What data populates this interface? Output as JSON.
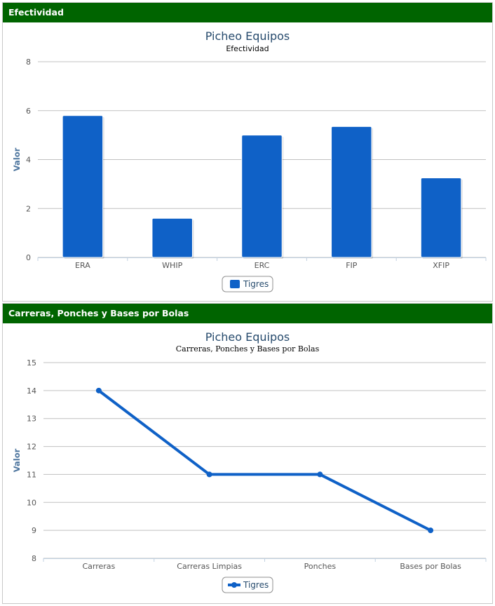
{
  "panels": [
    {
      "header": "Efectividad",
      "chart_data": {
        "type": "bar",
        "title": "Picheo Equipos",
        "subtitle": "Efectividad",
        "ylabel": "Valor",
        "ylim": [
          0,
          8
        ],
        "yticks": [
          0,
          2,
          4,
          6,
          8
        ],
        "categories": [
          "ERA",
          "WHIP",
          "ERC",
          "FIP",
          "XFIP"
        ],
        "series": [
          {
            "name": "Tigres",
            "values": [
              5.8,
              1.6,
              5.0,
              5.35,
              3.25
            ],
            "color": "#0f61c7"
          }
        ],
        "grid": true,
        "legend_position": "bottom-center"
      }
    },
    {
      "header": "Carreras, Ponches y Bases por Bolas",
      "chart_data": {
        "type": "line",
        "title": "Picheo Equipos",
        "subtitle": "Carreras, Ponches y Bases por Bolas",
        "ylabel": "Valor",
        "ylim": [
          8,
          15
        ],
        "yticks": [
          8,
          9,
          10,
          11,
          12,
          13,
          14,
          15
        ],
        "categories": [
          "Carreras",
          "Carreras Limpias",
          "Ponches",
          "Bases por Bolas"
        ],
        "series": [
          {
            "name": "Tigres",
            "values": [
              14,
              11,
              11,
              9
            ],
            "color": "#0f61c7"
          }
        ],
        "grid": true,
        "legend_position": "bottom-center"
      }
    }
  ]
}
